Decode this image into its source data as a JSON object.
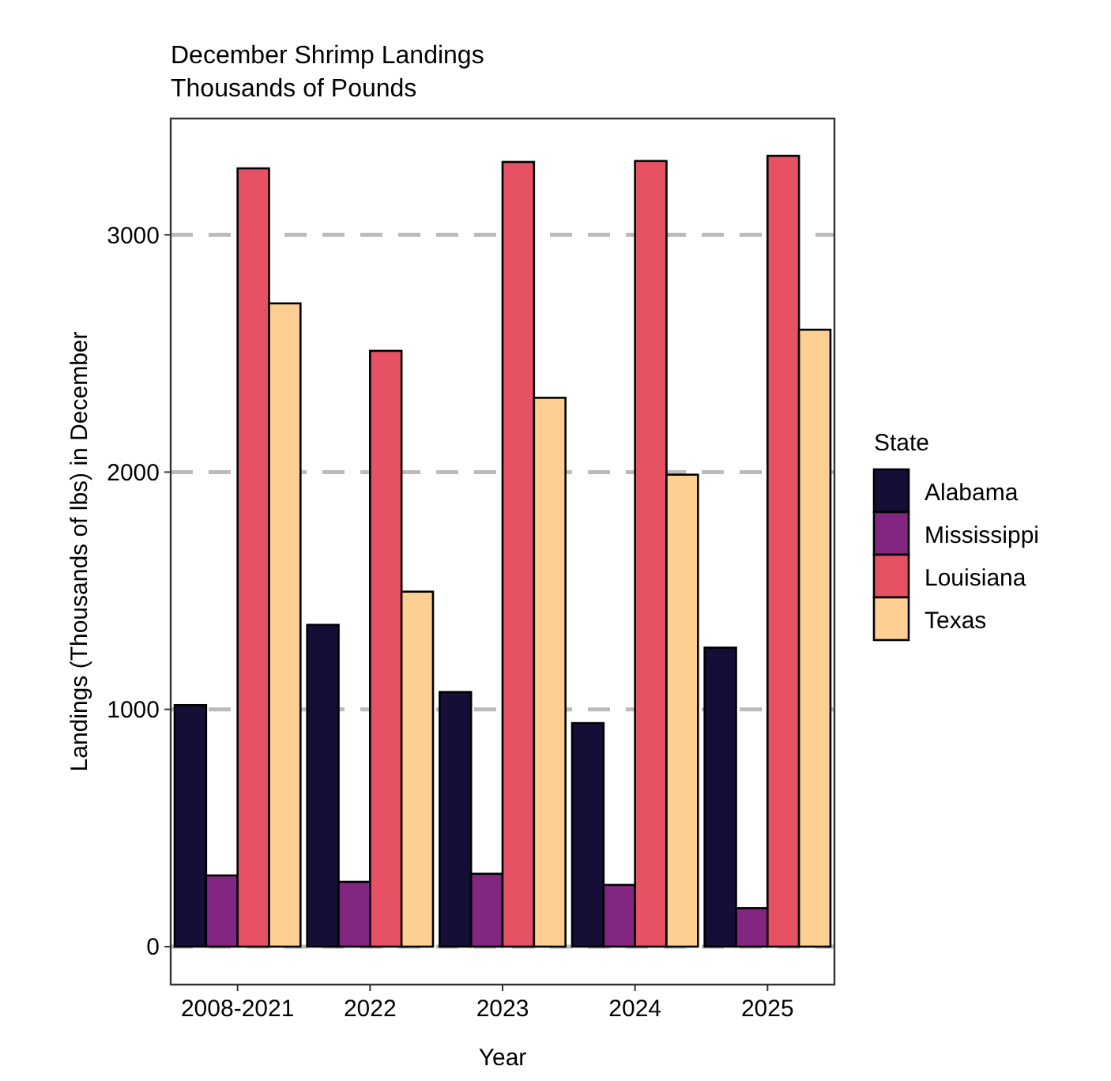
{
  "chart_data": {
    "type": "bar",
    "title": "December Shrimp Landings",
    "subtitle": "Thousands of Pounds",
    "xlabel": "Year",
    "ylabel": "Landings (Thousands of lbs) in December",
    "legend_title": "State",
    "categories": [
      "2008-2021",
      "2022",
      "2023",
      "2024",
      "2025"
    ],
    "series": [
      {
        "name": "Alabama",
        "color": "#150e37",
        "values": [
          1018,
          1356,
          1073,
          942,
          1260
        ]
      },
      {
        "name": "Mississippi",
        "color": "#822681",
        "values": [
          300,
          273,
          307,
          260,
          162
        ]
      },
      {
        "name": "Louisiana",
        "color": "#e65164",
        "values": [
          3280,
          2511,
          3307,
          3311,
          3333
        ]
      },
      {
        "name": "Texas",
        "color": "#fecf92",
        "values": [
          2711,
          1496,
          2313,
          1989,
          2600
        ]
      }
    ],
    "ylim": [
      -160,
      3490
    ],
    "yticks": [
      0,
      1000,
      2000,
      3000
    ],
    "grid": "y",
    "legend": "right"
  }
}
